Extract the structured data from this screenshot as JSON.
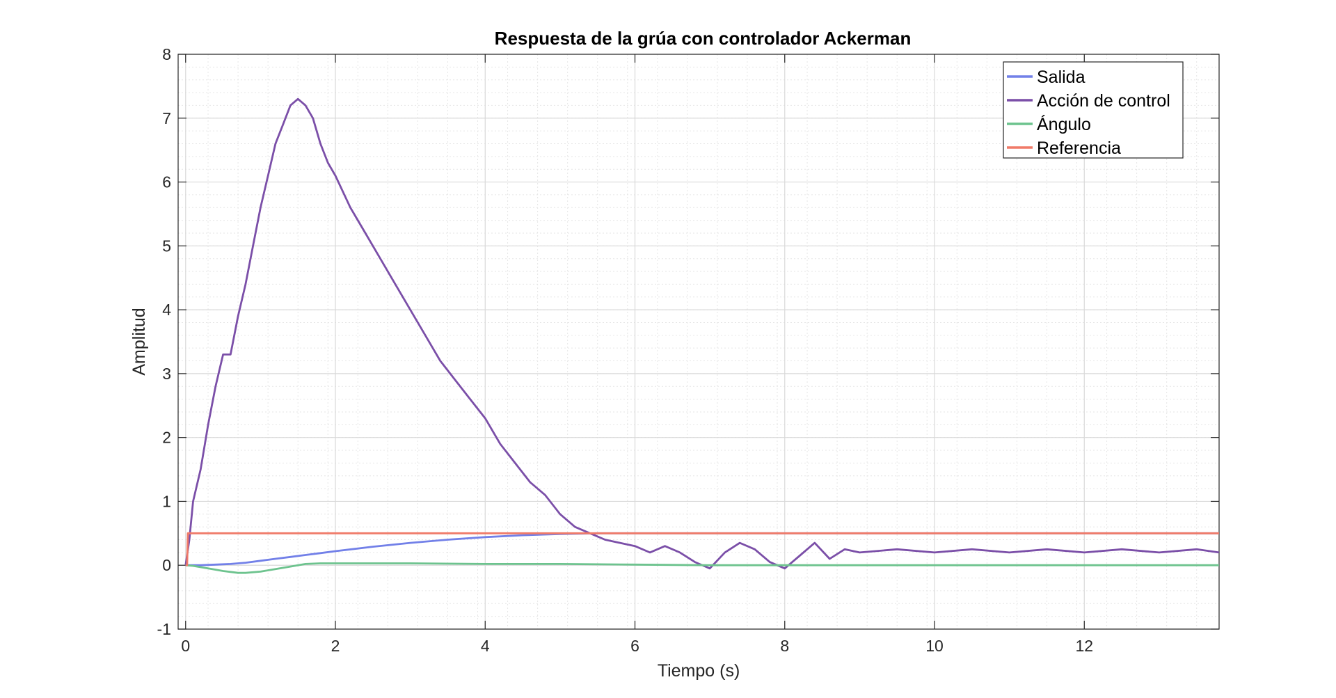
{
  "chart_data": {
    "type": "line",
    "title": "Respuesta de la grúa con controlador Ackerman",
    "xlabel": "Tiempo (s)",
    "ylabel": "Amplitud",
    "xlim": [
      -0.1,
      13.8
    ],
    "ylim": [
      -1,
      8
    ],
    "xticks": [
      0,
      2,
      4,
      6,
      8,
      10,
      12
    ],
    "yticks": [
      -1,
      0,
      1,
      2,
      3,
      4,
      5,
      6,
      7,
      8
    ],
    "grid": true,
    "minor_grid": true,
    "legend_position": "top-right",
    "series": [
      {
        "name": "Salida",
        "color": "#7280e8",
        "x": [
          0,
          0.2,
          0.4,
          0.6,
          0.8,
          1.0,
          1.2,
          1.4,
          1.6,
          1.8,
          2.0,
          2.5,
          3.0,
          3.5,
          4.0,
          4.5,
          5.0,
          5.5,
          6.0,
          7.0,
          8.0,
          9.0,
          10.0,
          11.0,
          12.0,
          13.0,
          13.8
        ],
        "y": [
          0,
          0.0,
          0.01,
          0.02,
          0.04,
          0.07,
          0.1,
          0.13,
          0.16,
          0.19,
          0.22,
          0.29,
          0.35,
          0.4,
          0.44,
          0.47,
          0.49,
          0.5,
          0.5,
          0.5,
          0.5,
          0.5,
          0.5,
          0.5,
          0.5,
          0.5,
          0.5
        ]
      },
      {
        "name": "Acción de control",
        "color": "#7b4fa8",
        "x": [
          0,
          0.05,
          0.1,
          0.2,
          0.3,
          0.4,
          0.5,
          0.6,
          0.7,
          0.8,
          0.9,
          1.0,
          1.1,
          1.2,
          1.3,
          1.4,
          1.5,
          1.6,
          1.7,
          1.8,
          1.9,
          2.0,
          2.2,
          2.4,
          2.6,
          2.8,
          3.0,
          3.2,
          3.4,
          3.6,
          3.8,
          4.0,
          4.2,
          4.4,
          4.6,
          4.8,
          5.0,
          5.2,
          5.4,
          5.6,
          5.8,
          6.0,
          6.2,
          6.4,
          6.6,
          6.8,
          7.0,
          7.2,
          7.4,
          7.6,
          7.8,
          8.0,
          8.2,
          8.4,
          8.6,
          8.8,
          9.0,
          9.5,
          10.0,
          10.5,
          11.0,
          11.5,
          12.0,
          12.5,
          13.0,
          13.5,
          13.8
        ],
        "y": [
          0,
          0.4,
          1.0,
          1.5,
          2.2,
          2.8,
          3.3,
          3.3,
          3.9,
          4.4,
          5.0,
          5.6,
          6.1,
          6.6,
          6.9,
          7.2,
          7.3,
          7.2,
          7.0,
          6.6,
          6.3,
          6.1,
          5.6,
          5.2,
          4.8,
          4.4,
          4.0,
          3.6,
          3.2,
          2.9,
          2.6,
          2.3,
          1.9,
          1.6,
          1.3,
          1.1,
          0.8,
          0.6,
          0.5,
          0.4,
          0.35,
          0.3,
          0.2,
          0.3,
          0.2,
          0.05,
          -0.05,
          0.2,
          0.35,
          0.25,
          0.05,
          -0.05,
          0.15,
          0.35,
          0.1,
          0.25,
          0.2,
          0.25,
          0.2,
          0.25,
          0.2,
          0.25,
          0.2,
          0.25,
          0.2,
          0.25,
          0.2
        ]
      },
      {
        "name": "Ángulo",
        "color": "#6dc38e",
        "x": [
          0,
          0.1,
          0.3,
          0.5,
          0.7,
          0.8,
          1.0,
          1.2,
          1.4,
          1.6,
          1.8,
          2.0,
          3.0,
          4.0,
          5.0,
          6.0,
          7.0,
          8.0,
          9.0,
          10.0,
          11.0,
          12.0,
          13.0,
          13.8
        ],
        "y": [
          0,
          -0.01,
          -0.05,
          -0.09,
          -0.12,
          -0.12,
          -0.1,
          -0.06,
          -0.02,
          0.02,
          0.03,
          0.03,
          0.03,
          0.02,
          0.02,
          0.01,
          0.0,
          0.0,
          0.0,
          0.0,
          0.0,
          0.0,
          0.0,
          0.0
        ]
      },
      {
        "name": "Referencia",
        "color": "#f07a68",
        "x": [
          0,
          0.02,
          0.03,
          13.8
        ],
        "y": [
          0,
          0,
          0.5,
          0.5
        ]
      }
    ]
  }
}
